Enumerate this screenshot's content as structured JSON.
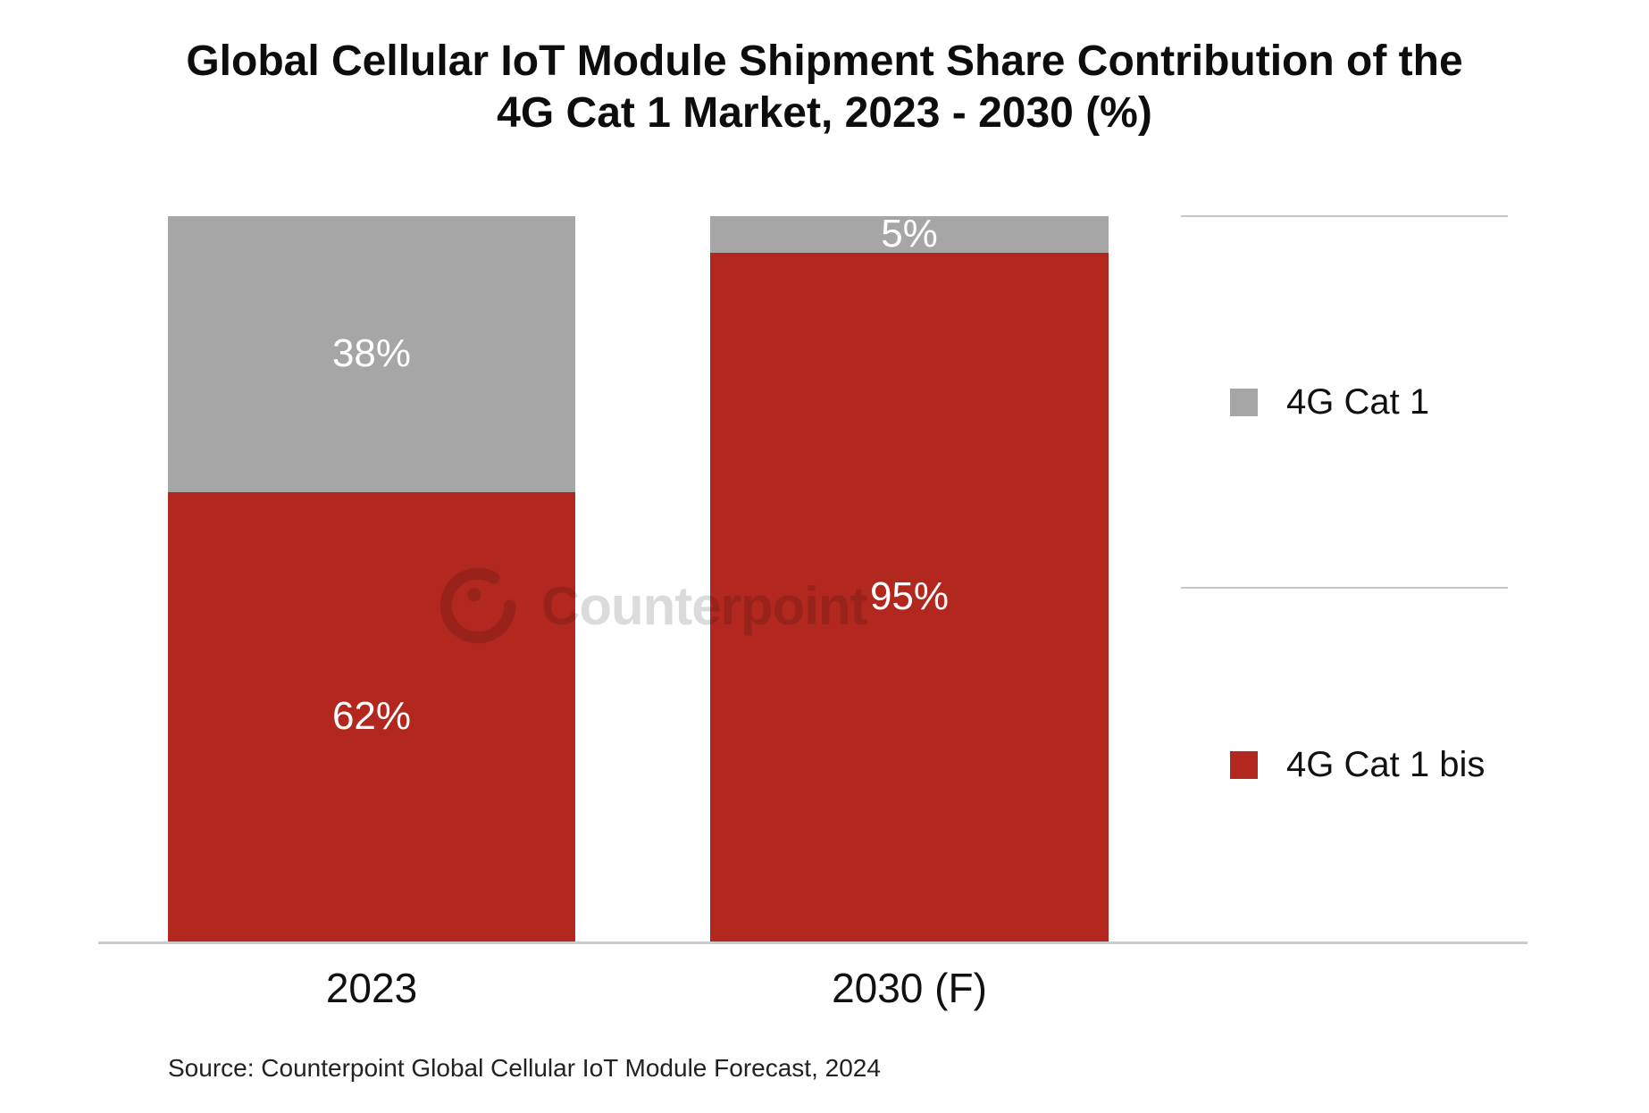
{
  "title": {
    "line1": "Global Cellular IoT Module Shipment Share Contribution of the",
    "line2": "4G Cat 1 Market, 2023 - 2030 (%)"
  },
  "legend": {
    "items": [
      {
        "label": "4G Cat 1",
        "color": "#A6A6A6"
      },
      {
        "label": "4G Cat 1 bis",
        "color": "#B2281E"
      }
    ]
  },
  "watermark": {
    "brand": "Counterpoint",
    "logo": "counterpoint-c-logo"
  },
  "source": "Source: Counterpoint Global Cellular IoT Module Forecast, 2024",
  "colors": {
    "cat1_gray": "#A6A6A6",
    "cat1bis_red": "#B2281E",
    "axis_line": "#CBCBCB"
  },
  "chart_data": {
    "type": "bar",
    "subtype": "stacked-100-percent",
    "title": "Global Cellular IoT Module Shipment Share Contribution of the 4G Cat 1 Market, 2023 - 2030 (%)",
    "categories": [
      "2023",
      "2030 (F)"
    ],
    "series": [
      {
        "name": "4G Cat 1",
        "color": "#A6A6A6",
        "values": [
          38,
          5
        ]
      },
      {
        "name": "4G Cat 1 bis",
        "color": "#B2281E",
        "values": [
          62,
          95
        ]
      }
    ],
    "value_labels": [
      [
        "38%",
        "5%"
      ],
      [
        "62%",
        "95%"
      ]
    ],
    "value_suffix": "%",
    "xlabel": "",
    "ylabel": "",
    "ylim": [
      0,
      100
    ],
    "grid": false,
    "legend_position": "right"
  }
}
